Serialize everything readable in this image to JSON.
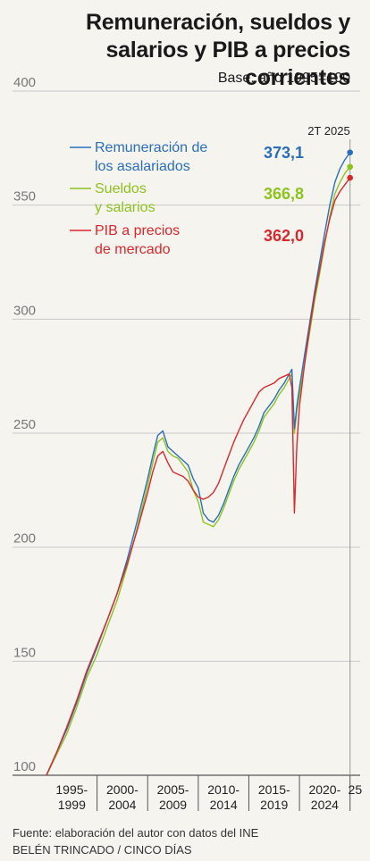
{
  "header": {
    "title": "Remuneración, sueldos y salarios y PIB a precios corrientes",
    "subtitle": "Base: año 1995=100"
  },
  "chart_data": {
    "type": "line",
    "title": "Remuneración, sueldos y salarios y PIB a precios corrientes",
    "subtitle": "Base: año 1995=100",
    "xlabel": "",
    "ylabel": "",
    "ylim": [
      100,
      400
    ],
    "yticks": [
      100,
      150,
      200,
      250,
      300,
      350,
      400
    ],
    "xlim": [
      1995,
      2026
    ],
    "x_groups": [
      {
        "label": [
          "1995-",
          "1999"
        ],
        "from": 1995,
        "to": 2000
      },
      {
        "label": [
          "2000-",
          "2004"
        ],
        "from": 2000,
        "to": 2005
      },
      {
        "label": [
          "2005-",
          "2009"
        ],
        "from": 2005,
        "to": 2010
      },
      {
        "label": [
          "2010-",
          "2014"
        ],
        "from": 2010,
        "to": 2015
      },
      {
        "label": [
          "2015-",
          "2019"
        ],
        "from": 2015,
        "to": 2020
      },
      {
        "label": [
          "2020-",
          "2024"
        ],
        "from": 2020,
        "to": 2025
      },
      {
        "label": [
          "25"
        ],
        "from": 2025,
        "to": 2026
      }
    ],
    "grid": true,
    "legend_position": "top-left",
    "end_period_label": "2T 2025",
    "series": [
      {
        "name": "Remuneración de los asalariados",
        "legend_lines": [
          "Remuneración de",
          "los asalariados"
        ],
        "color": "#2a6ebb",
        "end_label": "373,1",
        "points": [
          [
            1995,
            100
          ],
          [
            1996,
            110
          ],
          [
            1997,
            120
          ],
          [
            1998,
            132
          ],
          [
            1999,
            145
          ],
          [
            2000,
            156
          ],
          [
            2001,
            168
          ],
          [
            2002,
            180
          ],
          [
            2003,
            195
          ],
          [
            2004,
            212
          ],
          [
            2005,
            230
          ],
          [
            2005.5,
            240
          ],
          [
            2006,
            249
          ],
          [
            2006.5,
            251
          ],
          [
            2007,
            244
          ],
          [
            2007.5,
            242
          ],
          [
            2008,
            240
          ],
          [
            2008.5,
            238
          ],
          [
            2009,
            236
          ],
          [
            2009.5,
            230
          ],
          [
            2010,
            226
          ],
          [
            2010.5,
            215
          ],
          [
            2011,
            212
          ],
          [
            2011.5,
            211
          ],
          [
            2012,
            214
          ],
          [
            2012.5,
            219
          ],
          [
            2013,
            225
          ],
          [
            2013.5,
            231
          ],
          [
            2014,
            236
          ],
          [
            2014.5,
            240
          ],
          [
            2015,
            244
          ],
          [
            2015.5,
            248
          ],
          [
            2016,
            253
          ],
          [
            2016.5,
            259
          ],
          [
            2017,
            262
          ],
          [
            2017.5,
            265
          ],
          [
            2018,
            269
          ],
          [
            2018.5,
            272
          ],
          [
            2019,
            276
          ],
          [
            2019.25,
            278
          ],
          [
            2019.5,
            252
          ],
          [
            2019.75,
            262
          ],
          [
            2020,
            270
          ],
          [
            2020.5,
            284
          ],
          [
            2021,
            298
          ],
          [
            2021.5,
            312
          ],
          [
            2022,
            325
          ],
          [
            2022.5,
            338
          ],
          [
            2023,
            350
          ],
          [
            2023.5,
            360
          ],
          [
            2024,
            366
          ],
          [
            2024.5,
            370
          ],
          [
            2025,
            373.1
          ]
        ]
      },
      {
        "name": "Sueldos y salarios",
        "legend_lines": [
          "Sueldos",
          "y salarios"
        ],
        "color": "#8dc21f",
        "end_label": "366,8",
        "points": [
          [
            1995,
            100
          ],
          [
            1996,
            109
          ],
          [
            1997,
            118
          ],
          [
            1998,
            130
          ],
          [
            1999,
            143
          ],
          [
            2000,
            153
          ],
          [
            2001,
            165
          ],
          [
            2002,
            177
          ],
          [
            2003,
            192
          ],
          [
            2004,
            209
          ],
          [
            2005,
            227
          ],
          [
            2005.5,
            237
          ],
          [
            2006,
            246
          ],
          [
            2006.5,
            248
          ],
          [
            2007,
            242
          ],
          [
            2007.5,
            240
          ],
          [
            2008,
            239
          ],
          [
            2008.5,
            236
          ],
          [
            2009,
            233
          ],
          [
            2009.5,
            225
          ],
          [
            2010,
            220
          ],
          [
            2010.5,
            211
          ],
          [
            2011,
            210
          ],
          [
            2011.5,
            209
          ],
          [
            2012,
            212
          ],
          [
            2012.5,
            217
          ],
          [
            2013,
            223
          ],
          [
            2013.5,
            229
          ],
          [
            2014,
            234
          ],
          [
            2014.5,
            238
          ],
          [
            2015,
            242
          ],
          [
            2015.5,
            246
          ],
          [
            2016,
            251
          ],
          [
            2016.5,
            257
          ],
          [
            2017,
            260
          ],
          [
            2017.5,
            263
          ],
          [
            2018,
            267
          ],
          [
            2018.5,
            270
          ],
          [
            2019,
            274
          ],
          [
            2019.25,
            276
          ],
          [
            2019.5,
            250
          ],
          [
            2019.75,
            260
          ],
          [
            2020,
            267
          ],
          [
            2020.5,
            280
          ],
          [
            2021,
            294
          ],
          [
            2021.5,
            308
          ],
          [
            2022,
            320
          ],
          [
            2022.5,
            333
          ],
          [
            2023,
            345
          ],
          [
            2023.5,
            355
          ],
          [
            2024,
            360
          ],
          [
            2024.5,
            364
          ],
          [
            2025,
            366.8
          ]
        ]
      },
      {
        "name": "PIB a precios de mercado",
        "legend_lines": [
          "PIB a precios",
          "de mercado"
        ],
        "color": "#d9282d",
        "end_label": "362,0",
        "points": [
          [
            1995,
            100
          ],
          [
            1996,
            110
          ],
          [
            1997,
            121
          ],
          [
            1998,
            133
          ],
          [
            1999,
            146
          ],
          [
            2000,
            157
          ],
          [
            2001,
            168
          ],
          [
            2002,
            180
          ],
          [
            2003,
            193
          ],
          [
            2004,
            208
          ],
          [
            2005,
            224
          ],
          [
            2005.5,
            233
          ],
          [
            2006,
            240
          ],
          [
            2006.5,
            242
          ],
          [
            2007,
            237
          ],
          [
            2007.5,
            233
          ],
          [
            2008,
            232
          ],
          [
            2008.5,
            231
          ],
          [
            2009,
            229
          ],
          [
            2009.5,
            225
          ],
          [
            2010,
            222
          ],
          [
            2010.5,
            221
          ],
          [
            2011,
            222
          ],
          [
            2011.5,
            224
          ],
          [
            2012,
            228
          ],
          [
            2012.5,
            234
          ],
          [
            2013,
            240
          ],
          [
            2013.5,
            246
          ],
          [
            2014,
            251
          ],
          [
            2014.5,
            256
          ],
          [
            2015,
            260
          ],
          [
            2015.5,
            264
          ],
          [
            2016,
            268
          ],
          [
            2016.5,
            270
          ],
          [
            2017,
            271
          ],
          [
            2017.5,
            272
          ],
          [
            2018,
            274
          ],
          [
            2018.5,
            275
          ],
          [
            2019,
            276
          ],
          [
            2019.25,
            270
          ],
          [
            2019.5,
            215
          ],
          [
            2019.75,
            245
          ],
          [
            2020,
            262
          ],
          [
            2020.5,
            280
          ],
          [
            2021,
            296
          ],
          [
            2021.5,
            310
          ],
          [
            2022,
            322
          ],
          [
            2022.5,
            334
          ],
          [
            2023,
            344
          ],
          [
            2023.5,
            352
          ],
          [
            2024,
            356
          ],
          [
            2024.5,
            359
          ],
          [
            2025,
            362.0
          ]
        ]
      }
    ]
  },
  "footer": {
    "source": "Fuente: elaboración del autor con datos del INE",
    "credit": "BELÉN TRINCADO / CINCO DÍAS"
  }
}
